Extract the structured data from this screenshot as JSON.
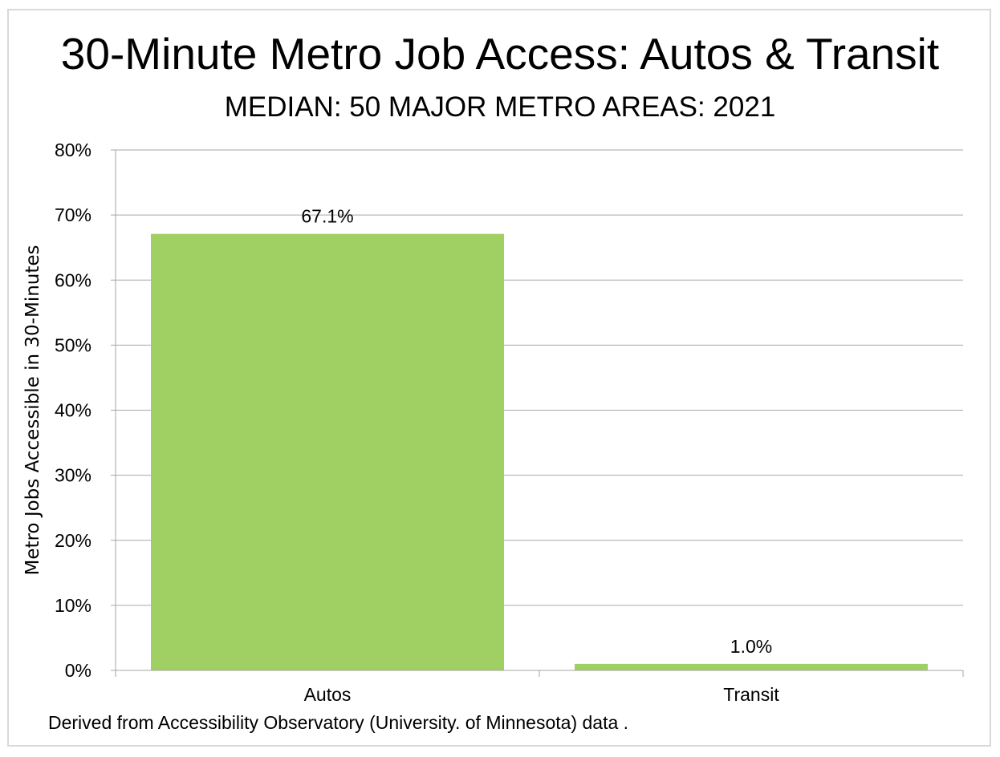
{
  "chart_data": {
    "type": "bar",
    "title": "30-Minute Metro Job Access: Autos & Transit",
    "subtitle": "MEDIAN: 50 MAJOR METRO AREAS: 2021",
    "xlabel": "",
    "ylabel": "Metro Jobs Accessible in 30-Minutes",
    "categories": [
      "Autos",
      "Transit"
    ],
    "values": [
      67.1,
      1.0
    ],
    "data_labels": [
      "67.1%",
      "1.0%"
    ],
    "ylim": [
      0,
      80
    ],
    "yticks": [
      0,
      10,
      20,
      30,
      40,
      50,
      60,
      70,
      80
    ],
    "ytick_labels": [
      "0%",
      "10%",
      "20%",
      "30%",
      "40%",
      "50%",
      "60%",
      "70%",
      "80%"
    ],
    "grid": true,
    "legend": "none",
    "bar_color": "#a0cf63",
    "grid_color": "#a6a6a6"
  },
  "source_note": "Derived from Accessibility Observatory (University. of Minnesota) data ."
}
